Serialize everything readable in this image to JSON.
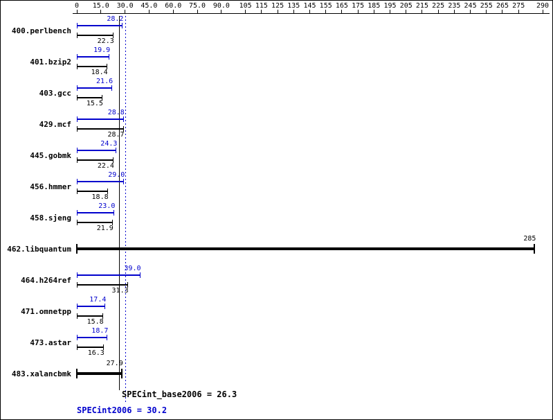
{
  "chart_data": {
    "type": "bar",
    "orientation": "horizontal",
    "title": "",
    "xlabel": "",
    "ylabel": "",
    "grid": false,
    "legend_position": "none",
    "series_colors": {
      "peak": "#0000cd",
      "base": "#000000"
    },
    "x_axis": {
      "min": 0,
      "max": 290,
      "ticks": [
        {
          "value": 0,
          "label": "0"
        },
        {
          "value": 15,
          "label": "15.0"
        },
        {
          "value": 30,
          "label": "30.0"
        },
        {
          "value": 45,
          "label": "45.0"
        },
        {
          "value": 60,
          "label": "60.0"
        },
        {
          "value": 75,
          "label": "75.0"
        },
        {
          "value": 90,
          "label": "90.0"
        },
        {
          "value": 105,
          "label": "105"
        },
        {
          "value": 115,
          "label": "115"
        },
        {
          "value": 125,
          "label": "125"
        },
        {
          "value": 135,
          "label": "135"
        },
        {
          "value": 145,
          "label": "145"
        },
        {
          "value": 155,
          "label": "155"
        },
        {
          "value": 165,
          "label": "165"
        },
        {
          "value": 175,
          "label": "175"
        },
        {
          "value": 185,
          "label": "185"
        },
        {
          "value": 195,
          "label": "195"
        },
        {
          "value": 205,
          "label": "205"
        },
        {
          "value": 215,
          "label": "215"
        },
        {
          "value": 225,
          "label": "225"
        },
        {
          "value": 235,
          "label": "235"
        },
        {
          "value": 245,
          "label": "245"
        },
        {
          "value": 255,
          "label": "255"
        },
        {
          "value": 265,
          "label": "265"
        },
        {
          "value": 275,
          "label": "275"
        },
        {
          "value": 290,
          "label": "290"
        }
      ]
    },
    "benchmarks": [
      {
        "name": "400.perlbench",
        "peak": 28.2,
        "base": 22.3,
        "peak_label": "28.2",
        "base_label": "22.3"
      },
      {
        "name": "401.bzip2",
        "peak": 19.9,
        "base": 18.4,
        "peak_label": "19.9",
        "base_label": "18.4"
      },
      {
        "name": "403.gcc",
        "peak": 21.6,
        "base": 15.5,
        "peak_label": "21.6",
        "base_label": "15.5"
      },
      {
        "name": "429.mcf",
        "peak": 28.8,
        "base": 28.7,
        "peak_label": "28.8",
        "base_label": "28.7"
      },
      {
        "name": "445.gobmk",
        "peak": 24.3,
        "base": 22.4,
        "peak_label": "24.3",
        "base_label": "22.4"
      },
      {
        "name": "456.hmmer",
        "peak": 29.0,
        "base": 18.8,
        "peak_label": "29.0",
        "base_label": "18.8"
      },
      {
        "name": "458.sjeng",
        "peak": 23.0,
        "base": 21.9,
        "peak_label": "23.0",
        "base_label": "21.9"
      },
      {
        "name": "462.libquantum",
        "peak": 285,
        "base": 285,
        "peak_label": "285",
        "base_label": "285"
      },
      {
        "name": "464.h264ref",
        "peak": 39.0,
        "base": 31.3,
        "peak_label": "39.0",
        "base_label": "31.3"
      },
      {
        "name": "471.omnetpp",
        "peak": 17.4,
        "base": 15.8,
        "peak_label": "17.4",
        "base_label": "15.8"
      },
      {
        "name": "473.astar",
        "peak": 18.7,
        "base": 16.3,
        "peak_label": "18.7",
        "base_label": "16.3"
      },
      {
        "name": "483.xalancbmk",
        "peak": 27.9,
        "base": 27.9,
        "peak_label": "27.9",
        "base_label": "27.9"
      }
    ],
    "means": {
      "base": {
        "name": "SPECint_base2006",
        "value": 26.3,
        "label": "SPECint_base2006 = 26.3",
        "line_style": "solid",
        "color": "#000000"
      },
      "peak": {
        "name": "SPECint2006",
        "value": 30.2,
        "label": "SPECint2006 = 30.2",
        "line_style": "dotted",
        "color": "#0000cd"
      }
    }
  }
}
